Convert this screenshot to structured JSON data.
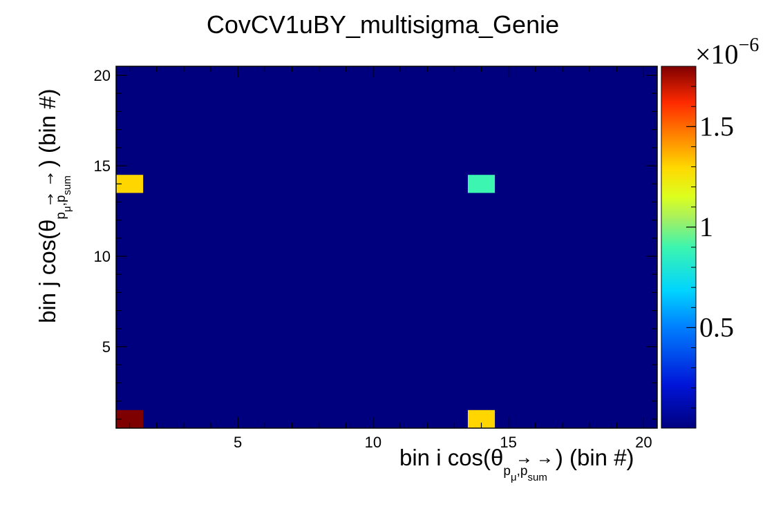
{
  "chart_data": {
    "type": "heatmap",
    "title": "CovCV1uBY_multisigma_Genie",
    "xlabel": {
      "pre": "bin i cos(θ",
      "sub1": "p",
      "sub1_sub": "μ",
      "comma": ",",
      "sub2": "p",
      "sub2_sub": "sum",
      "post": ") (bin #)"
    },
    "ylabel": {
      "pre": "bin j cos(θ",
      "sub1": "p",
      "sub1_sub": "μ",
      "comma": ",",
      "sub2": "p",
      "sub2_sub": "sum",
      "post": ") (bin #)"
    },
    "x_range": [
      0.5,
      20.5
    ],
    "y_range": [
      0.5,
      20.5
    ],
    "x_ticks": [
      5,
      10,
      15,
      20
    ],
    "y_ticks": [
      5,
      10,
      15,
      20
    ],
    "colorbar": {
      "multiplier": "×10",
      "exponent": "−6",
      "range": [
        0,
        1.8
      ],
      "ticks": [
        0.5,
        1,
        1.5
      ],
      "tick_labels": [
        "0.5",
        "1",
        "1.5"
      ]
    },
    "background_value": 0,
    "cells": [
      {
        "i": 1,
        "j": 1,
        "value": 1.8
      },
      {
        "i": 1,
        "j": 14,
        "value": 1.3
      },
      {
        "i": 14,
        "j": 1,
        "value": 1.3
      },
      {
        "i": 14,
        "j": 14,
        "value": 0.9
      }
    ]
  }
}
